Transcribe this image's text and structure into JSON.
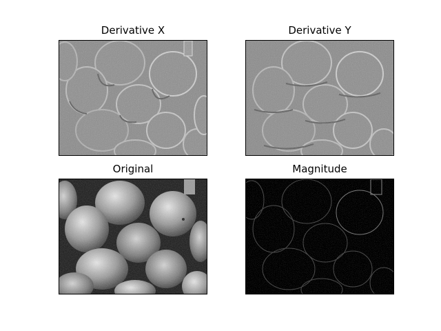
{
  "figure": {
    "panels": [
      {
        "id": "dx",
        "title": "Derivative X"
      },
      {
        "id": "dy",
        "title": "Derivative Y"
      },
      {
        "id": "orig",
        "title": "Original"
      },
      {
        "id": "mag",
        "title": "Magnitude"
      }
    ]
  }
}
